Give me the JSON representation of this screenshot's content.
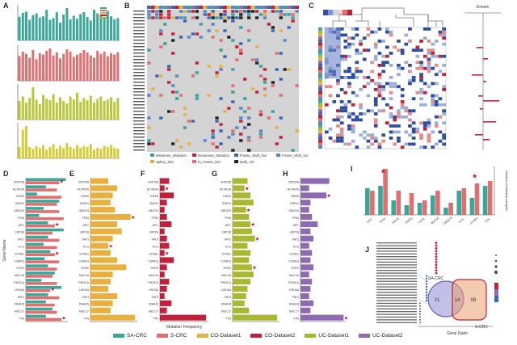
{
  "figure": {
    "panels": [
      "A",
      "B",
      "C",
      "D",
      "E",
      "F",
      "G",
      "H",
      "I",
      "J"
    ]
  },
  "legend": [
    {
      "label": "SA-CRC",
      "color": "#3aa79a"
    },
    {
      "label": "S-CRC",
      "color": "#e07070"
    },
    {
      "label": "CO-Dataset1",
      "color": "#e8b040"
    },
    {
      "label": "CO-Dataset2",
      "color": "#c0203a"
    },
    {
      "label": "UC-Dataset1",
      "color": "#a8b832"
    },
    {
      "label": "UC-Dataset2",
      "color": "#8e6bb0"
    }
  ],
  "colors": {
    "teal": "#3aa79a",
    "salmon": "#e07070",
    "orange": "#e8b040",
    "crimson": "#c0203a",
    "olive": "#a8b832",
    "purple": "#8e6bb0",
    "yellow": "#d6cc3a",
    "blue": "#3b66b3",
    "grey": "#cccccc"
  },
  "labels": {
    "d_ylabel": "Gene Name",
    "f_xlabel": "Mutation Frequency",
    "j_xlabel": "Gene Ratio",
    "i_ylabel": "Number of mutated samples",
    "c_top_label": "Ensem"
  },
  "venn": {
    "left_label": "SA-CRC",
    "right_label": "S-CRC",
    "left_only": "21",
    "overlap": "14",
    "right_only": "08"
  },
  "b_legend": [
    {
      "label": "Missense_Mutation",
      "color": "#3aa0a0"
    },
    {
      "label": "Nonsense_Mutation",
      "color": "#c0203a"
    },
    {
      "label": "Frame_Shift_Del",
      "color": "#3b66b3"
    },
    {
      "label": "Frame_Shift_Ins",
      "color": "#5a86c8"
    },
    {
      "label": "Splice_Site",
      "color": "#e8b040"
    },
    {
      "label": "In_Frame_Del",
      "color": "#e07070"
    },
    {
      "label": "Multi_Hit",
      "color": "#222222"
    }
  ],
  "chart_data": [
    {
      "panel": "A1",
      "type": "bar",
      "values": [
        40,
        47,
        49,
        35,
        43,
        46,
        39,
        41,
        52,
        35,
        38,
        48,
        30,
        44,
        55,
        36,
        42,
        37,
        45,
        48,
        40,
        34,
        52,
        46,
        43,
        39,
        50,
        41,
        36,
        38
      ]
    },
    {
      "panel": "A2",
      "type": "bar",
      "values": [
        32,
        38,
        35,
        30,
        40,
        28,
        36,
        34,
        39,
        42,
        33,
        37,
        29,
        35,
        41,
        38,
        31,
        34,
        36,
        40,
        37,
        33,
        30,
        39,
        35,
        38,
        32,
        36,
        34,
        37
      ]
    },
    {
      "panel": "A3",
      "type": "bar",
      "values": [
        24,
        30,
        22,
        28,
        42,
        26,
        20,
        32,
        27,
        25,
        33,
        22,
        29,
        24,
        21,
        30,
        26,
        35,
        23,
        28,
        25,
        31,
        22,
        27,
        30,
        24,
        26,
        29,
        23,
        28
      ]
    },
    {
      "panel": "A4",
      "type": "bar",
      "values": [
        12,
        30,
        34,
        12,
        10,
        13,
        11,
        14,
        9,
        12,
        15,
        10,
        13,
        11,
        16,
        12,
        10,
        14,
        11,
        13,
        12,
        15,
        9,
        11,
        10,
        13,
        12,
        14,
        11,
        10
      ]
    },
    {
      "panel": "D",
      "type": "bar",
      "categories": [
        "ZNF208",
        "ACVR2A",
        "KRAS",
        "ZNF91",
        "OBSCN",
        "TP53",
        "APC",
        "LRP1B",
        "FAT3",
        "FLG",
        "SYNE1",
        "CSMD3",
        "RYR2",
        "MUC16",
        "PIK3CA",
        "USH2A",
        "FAT4",
        "DNAH5",
        "MUC17",
        "TTN"
      ],
      "series": [
        {
          "values": [
            36,
            18,
            10,
            30,
            16,
            12,
            20,
            34,
            20,
            16,
            22,
            17,
            20,
            26,
            14,
            32,
            20,
            18,
            24,
            18
          ]
        },
        {
          "values": [
            30,
            28,
            32,
            28,
            30,
            34,
            26,
            24,
            30,
            28,
            26,
            30,
            28,
            24,
            28,
            22,
            30,
            26,
            28,
            32
          ]
        }
      ]
    },
    {
      "panel": "E",
      "type": "bar",
      "categories": [
        "ZNF208",
        "ACVR2A",
        "KRAS",
        "ZNF91",
        "OBSCN",
        "TP53",
        "APC",
        "LRP1B",
        "FAT3",
        "FLG",
        "SYNE1",
        "CSMD3",
        "RYR2",
        "MUC16",
        "PIK3CA",
        "USH2A",
        "FAT4",
        "DNAH5",
        "MUC17",
        "TTN"
      ],
      "values": [
        8,
        12,
        10,
        9,
        11,
        18,
        12,
        14,
        10,
        8,
        9,
        12,
        16,
        10,
        9,
        8,
        12,
        10,
        9,
        20
      ]
    },
    {
      "panel": "F",
      "type": "bar",
      "categories": [
        "ZNF208",
        "ACVR2A",
        "KRAS",
        "ZNF91",
        "OBSCN",
        "TP53",
        "APC",
        "LRP1B",
        "FAT3",
        "FLG",
        "SYNE1",
        "CSMD3",
        "RYR2",
        "MUC16",
        "PIK3CA",
        "USH2A",
        "FAT4",
        "DNAH5",
        "MUC17",
        "TTN"
      ],
      "values": [
        4,
        2,
        6,
        3,
        2,
        3,
        5,
        2,
        3,
        4,
        2,
        6,
        3,
        2,
        4,
        3,
        2,
        5,
        3,
        20
      ]
    },
    {
      "panel": "G",
      "type": "bar",
      "categories": [
        "ZNF208",
        "ACVR2A",
        "KRAS",
        "ZNF91",
        "OBSCN",
        "TP53",
        "APC",
        "LRP1B",
        "FAT3",
        "FLG",
        "SYNE1",
        "CSMD3",
        "RYR2",
        "MUC16",
        "PIK3CA",
        "USH2A",
        "FAT4",
        "DNAH5",
        "MUC17",
        "TTN"
      ],
      "values": [
        10,
        8,
        12,
        14,
        9,
        11,
        12,
        13,
        15,
        10,
        12,
        11,
        13,
        14,
        12,
        10,
        9,
        8,
        11,
        30
      ]
    },
    {
      "panel": "H",
      "type": "bar",
      "categories": [
        "ZNF208",
        "ACVR2A",
        "KRAS",
        "ZNF91",
        "OBSCN",
        "TP53",
        "APC",
        "LRP1B",
        "FAT3",
        "FLG",
        "SYNE1",
        "CSMD3",
        "RYR2",
        "MUC16",
        "PIK3CA",
        "USH2A",
        "FAT4",
        "DNAH5",
        "MUC17",
        "TTN"
      ],
      "values": [
        20,
        6,
        18,
        7,
        6,
        8,
        12,
        7,
        9,
        6,
        8,
        7,
        9,
        6,
        8,
        7,
        6,
        9,
        7,
        30
      ]
    },
    {
      "panel": "I",
      "type": "bar",
      "categories": [
        "APC",
        "TP53",
        "KRAS",
        "ZNF91",
        "FAT4",
        "MUC16",
        "OBSCN",
        "FLG",
        "SYNE1",
        "TTN"
      ],
      "series": [
        {
          "values": [
            22,
            24,
            12,
            8,
            10,
            16,
            6,
            20,
            14,
            24
          ]
        },
        {
          "values": [
            20,
            38,
            20,
            18,
            12,
            20,
            10,
            22,
            26,
            28
          ]
        }
      ]
    }
  ]
}
